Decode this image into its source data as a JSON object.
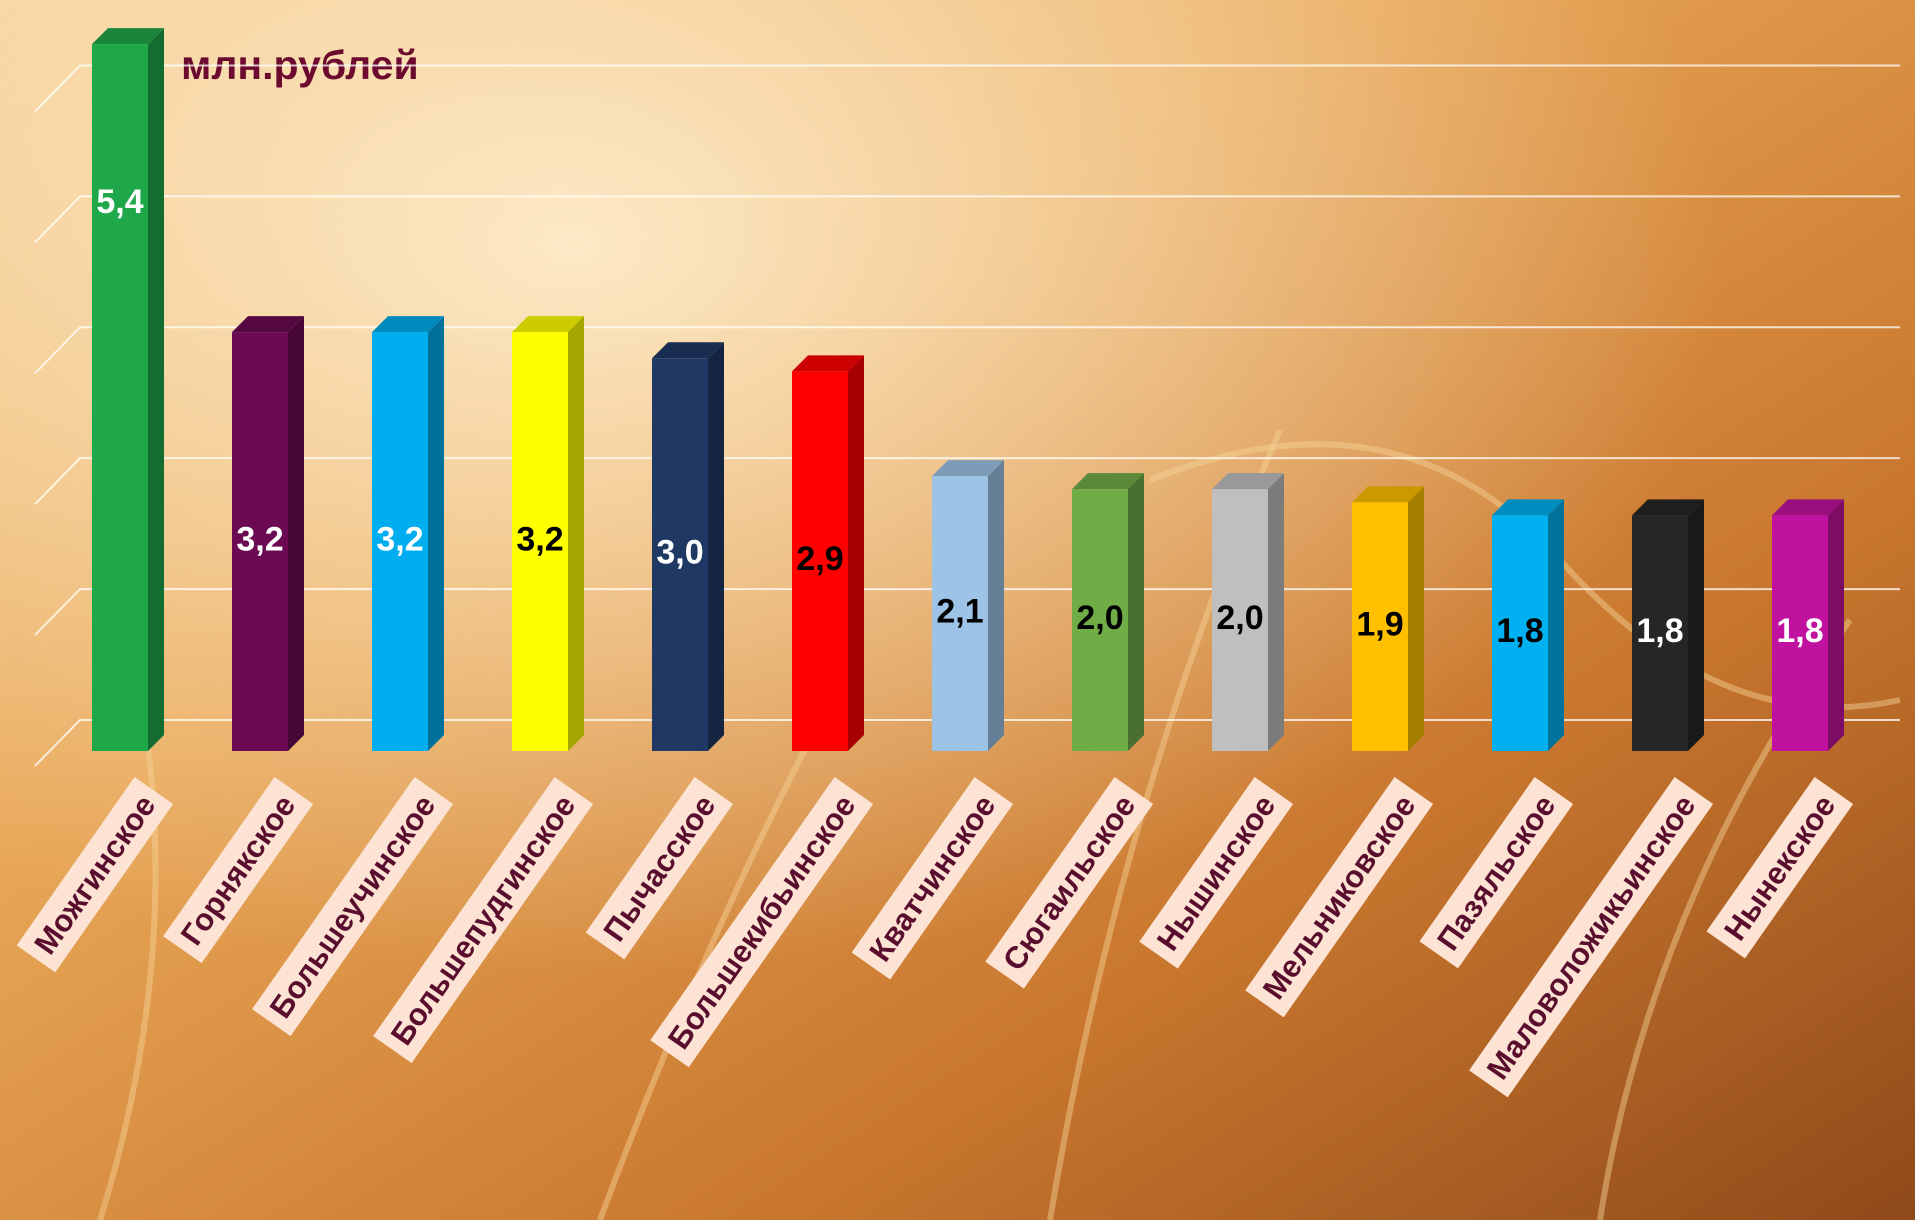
{
  "chart_data": {
    "type": "bar3d",
    "unit_label": "млн.рублей",
    "categories": [
      "Можгинское",
      "Горнякское",
      "Большеучинское",
      "Большепудгинское",
      "Пычасское",
      "Большекибьинское",
      "Кватчинское",
      "Сюгаильское",
      "Нышинское",
      "Мельниковское",
      "Пазяльское",
      "Маловоложикьинское",
      "Нынекское"
    ],
    "values": [
      5.4,
      3.2,
      3.2,
      3.2,
      3.0,
      2.9,
      2.1,
      2.0,
      2.0,
      1.9,
      1.8,
      1.8,
      1.8
    ],
    "value_labels": [
      "5,4",
      "3,2",
      "3,2",
      "3,2",
      "3,0",
      "2,9",
      "2,1",
      "2,0",
      "2,0",
      "1,9",
      "1,8",
      "1,8",
      "1,8"
    ],
    "colors": [
      "#1fa84a",
      "#6b0a52",
      "#00aeef",
      "#ffff00",
      "#1f3864",
      "#ff0000",
      "#9dc3e6",
      "#70ad47",
      "#bfbfbf",
      "#ffc000",
      "#00b0f0",
      "#262626",
      "#c0129e"
    ],
    "label_colors": [
      "#ffffff",
      "#ffffff",
      "#ffffff",
      "#000000",
      "#ffffff",
      "#000000",
      "#000000",
      "#000000",
      "#000000",
      "#000000",
      "#000000",
      "#ffffff",
      "#ffffff"
    ],
    "ylim": [
      0,
      5.5
    ],
    "yticks": [
      0,
      1,
      2,
      3,
      4,
      5
    ],
    "grid": true
  }
}
